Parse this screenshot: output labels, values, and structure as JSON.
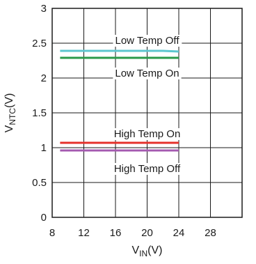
{
  "chart_data": {
    "type": "line",
    "xlabel": {
      "main": "V",
      "sub": "IN",
      "unit": "(V)"
    },
    "ylabel": {
      "main": "V",
      "sub": "NTC",
      "unit": "(V)"
    },
    "xlim": [
      8,
      32
    ],
    "ylim": [
      0,
      3
    ],
    "xticks": [
      8,
      12,
      16,
      20,
      24,
      28
    ],
    "yticks": [
      0,
      0.5,
      1,
      1.5,
      2,
      2.5,
      3
    ],
    "ytick_labels": [
      "0",
      "0.5",
      "1",
      "1.5",
      "2",
      "2.5",
      "3"
    ],
    "grid": true,
    "series": [
      {
        "name": "Low Temp Off",
        "color": "#5cc6cf",
        "x": [
          9,
          12,
          16,
          20,
          22,
          24
        ],
        "y": [
          2.39,
          2.39,
          2.39,
          2.39,
          2.39,
          2.38
        ]
      },
      {
        "name": "Low Temp On",
        "color": "#2a9a4a",
        "x": [
          9,
          12,
          16,
          20,
          24
        ],
        "y": [
          2.29,
          2.29,
          2.29,
          2.29,
          2.29
        ]
      },
      {
        "name": "High Temp On",
        "color": "#e5312b",
        "x": [
          9,
          12,
          16,
          20,
          24
        ],
        "y": [
          1.07,
          1.07,
          1.07,
          1.07,
          1.07
        ]
      },
      {
        "name": "High Temp Off",
        "color": "#a45ab0",
        "x": [
          9,
          12,
          16,
          20,
          24
        ],
        "y": [
          0.96,
          0.96,
          0.96,
          0.96,
          0.96
        ]
      }
    ],
    "annotations": [
      {
        "text": "Low Temp Off",
        "x": 20,
        "y": 2.54
      },
      {
        "text": "Low Temp On",
        "x": 20,
        "y": 2.07
      },
      {
        "text": "High Temp On",
        "x": 20,
        "y": 1.2
      },
      {
        "text": "High Temp Off",
        "x": 20,
        "y": 0.7
      }
    ]
  }
}
